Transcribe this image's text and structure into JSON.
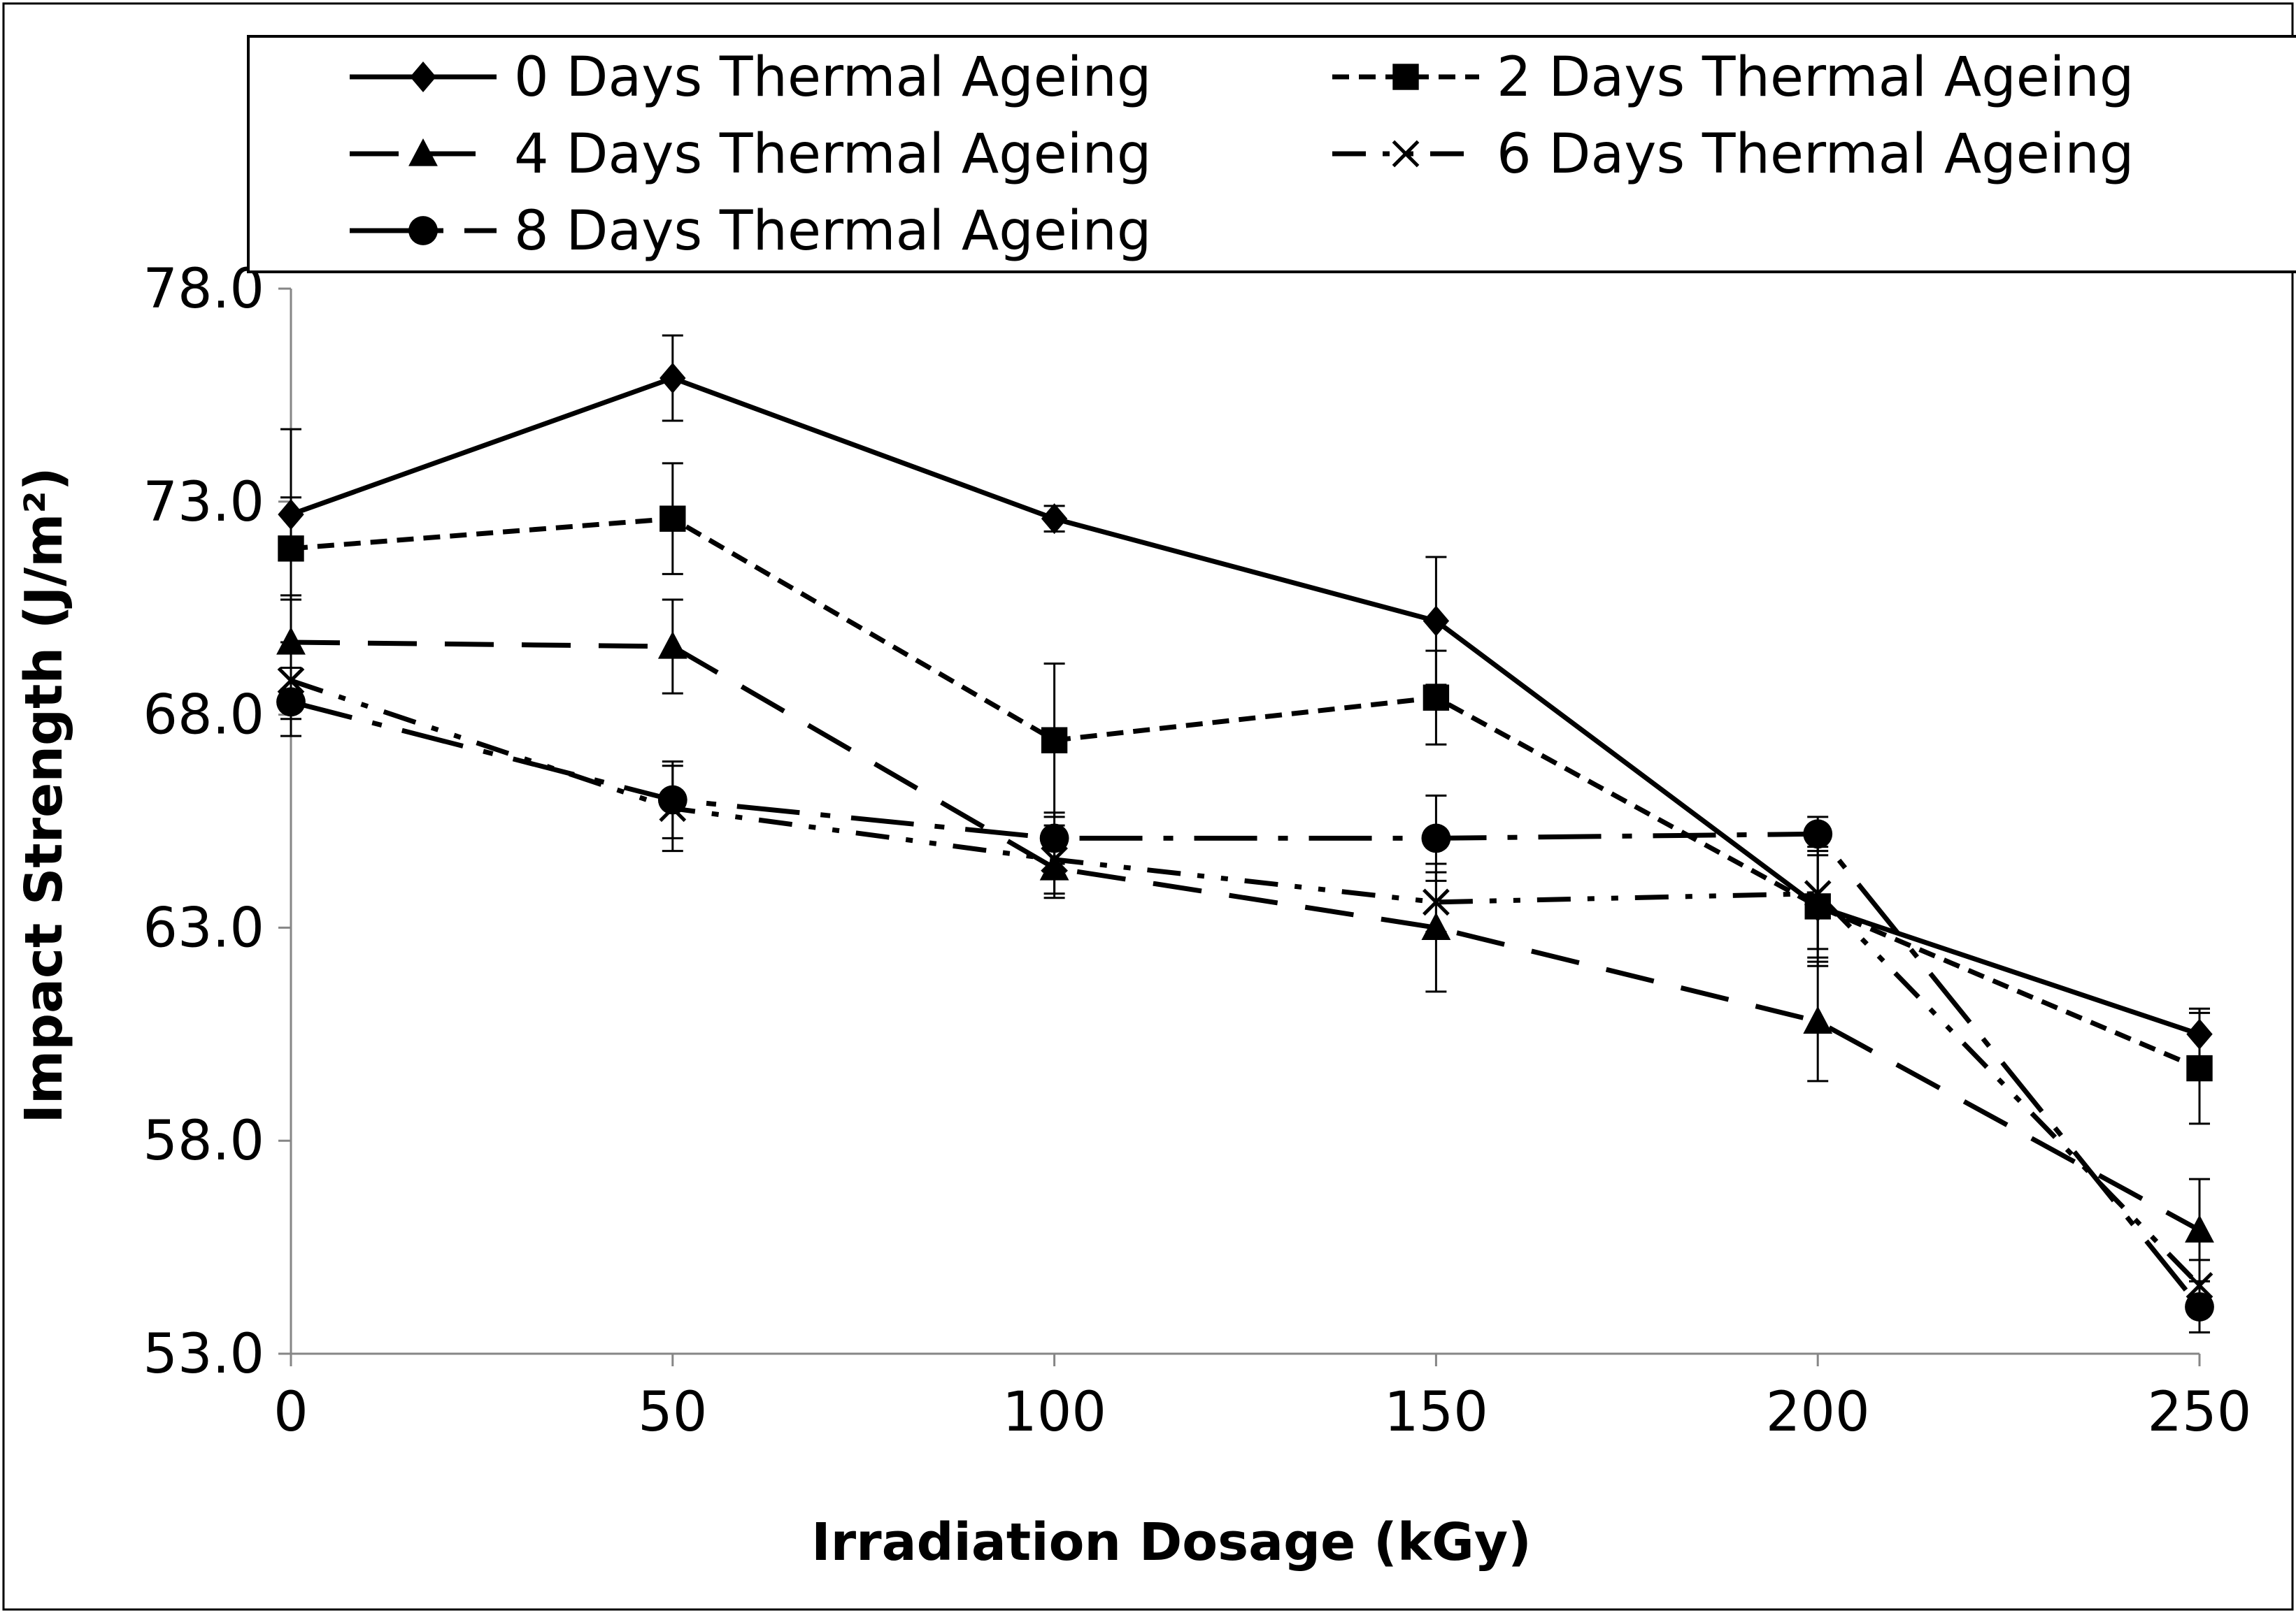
{
  "chart_data": {
    "type": "line",
    "title": "",
    "xlabel": "Irradiation Dosage (kGy)",
    "ylabel": "Impact Strength (J/m²)",
    "x": [
      0,
      50,
      100,
      150,
      200,
      250
    ],
    "x_tick_labels": [
      "0",
      "50",
      "100",
      "150",
      "200",
      "250"
    ],
    "xlim": [
      0,
      250
    ],
    "ylim": [
      53.0,
      78.0
    ],
    "y_ticks": [
      53.0,
      58.0,
      63.0,
      68.0,
      73.0,
      78.0
    ],
    "y_tick_labels": [
      "53.0",
      "58.0",
      "63.0",
      "68.0",
      "73.0",
      "78.0"
    ],
    "grid": false,
    "legend_position": "top",
    "series": [
      {
        "name": "0 Days Thermal Ageing",
        "marker": "diamond",
        "dash": "solid",
        "values": [
          72.7,
          75.9,
          72.6,
          70.2,
          63.5,
          60.5
        ],
        "errors": [
          2.0,
          1.0,
          0.3,
          1.5,
          1.2,
          0.6
        ]
      },
      {
        "name": "2 Days Thermal Ageing",
        "marker": "square",
        "dash": "short-dash",
        "values": [
          71.9,
          72.6,
          67.4,
          68.4,
          63.5,
          59.7
        ],
        "errors": [
          1.2,
          1.3,
          1.8,
          1.1,
          1.4,
          1.3
        ]
      },
      {
        "name": "4 Days Thermal Ageing",
        "marker": "triangle",
        "dash": "long-dash",
        "values": [
          69.7,
          69.6,
          64.4,
          63.0,
          60.8,
          55.9
        ],
        "errors": [
          1.1,
          1.1,
          0.7,
          1.5,
          1.4,
          1.2
        ]
      },
      {
        "name": "6 Days Thermal Ageing",
        "marker": "x",
        "dash": "dash-dot-dot",
        "values": [
          68.8,
          65.8,
          64.6,
          63.6,
          63.8,
          54.6
        ],
        "errors": [
          0.9,
          1.0,
          0.8,
          0.7,
          1.3,
          0.6
        ]
      },
      {
        "name": "8 Days Thermal Ageing",
        "marker": "circle",
        "dash": "long-dash-dot",
        "values": [
          68.3,
          66.0,
          65.1,
          65.1,
          65.2,
          54.1
        ],
        "errors": [
          0.8,
          0.9,
          0.6,
          1.0,
          0.4,
          0.6
        ]
      }
    ]
  }
}
